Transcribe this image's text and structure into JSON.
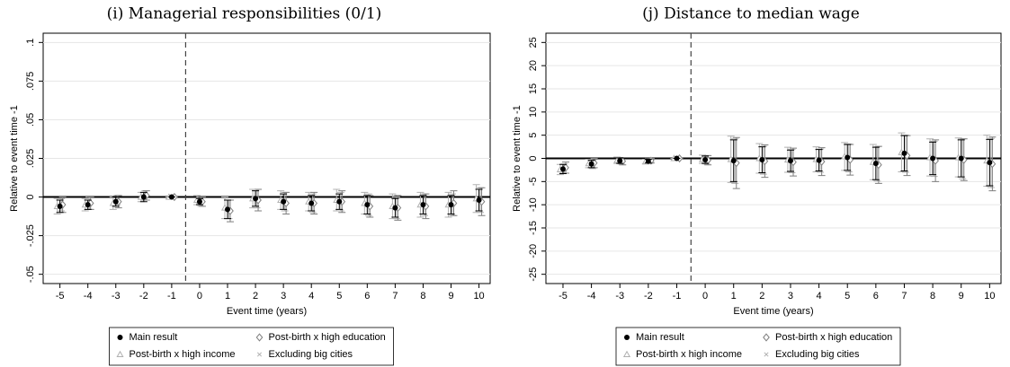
{
  "chart_data": [
    {
      "type": "errorbar",
      "title": "(i) Managerial responsibilities (0/1)",
      "x_label": "Event time (years)",
      "y_label": "Relative to event time -1",
      "x": [
        -5,
        -4,
        -3,
        -2,
        -1,
        0,
        1,
        2,
        3,
        4,
        5,
        6,
        7,
        8,
        9,
        10
      ],
      "xlim": [
        -5.6,
        10.4
      ],
      "xticks": [
        -5,
        -4,
        -3,
        -2,
        -1,
        0,
        1,
        2,
        3,
        4,
        5,
        6,
        7,
        8,
        9,
        10
      ],
      "ylim": [
        -0.056,
        0.106
      ],
      "yticks": [
        {
          "value": -0.05,
          "label": "-.05"
        },
        {
          "value": -0.025,
          "label": "-.025"
        },
        0,
        {
          "value": 0.025,
          "label": ".025"
        },
        {
          "value": 0.05,
          "label": ".05"
        },
        {
          "value": 0.075,
          "label": ".075"
        },
        {
          "value": 0.1,
          "label": ".1"
        }
      ],
      "grid": true,
      "hline": 0,
      "vline": -0.5,
      "series": [
        {
          "name": "Main result",
          "color": "#000000",
          "marker": "circle",
          "values": [
            -0.006,
            -0.005,
            -0.003,
            0.0,
            0,
            -0.003,
            -0.008,
            -0.001,
            -0.003,
            -0.004,
            -0.003,
            -0.005,
            -0.007,
            -0.005,
            -0.005,
            -0.002
          ],
          "errors": [
            0.004,
            0.003,
            0.003,
            0.003,
            0,
            0.002,
            0.006,
            0.005,
            0.005,
            0.005,
            0.005,
            0.006,
            0.006,
            0.006,
            0.006,
            0.007
          ]
        },
        {
          "name": "Post-birth x high education",
          "color": "#7f7f7f",
          "marker": "diamond",
          "values": [
            -0.005,
            -0.004,
            -0.003,
            0.001,
            0,
            -0.003,
            -0.009,
            -0.002,
            -0.004,
            -0.004,
            -0.003,
            -0.006,
            -0.007,
            -0.006,
            -0.004,
            -0.003
          ],
          "errors": [
            0.005,
            0.004,
            0.004,
            0.003,
            0,
            0.003,
            0.007,
            0.007,
            0.007,
            0.007,
            0.007,
            0.007,
            0.008,
            0.008,
            0.008,
            0.009
          ]
        },
        {
          "name": "Post-birth x high income",
          "color": "#b0b0b0",
          "marker": "triangle",
          "values": [
            -0.006,
            -0.005,
            -0.004,
            0.0,
            0,
            -0.002,
            -0.007,
            -0.001,
            -0.002,
            -0.003,
            -0.002,
            -0.004,
            -0.006,
            -0.005,
            -0.005,
            -0.001
          ],
          "errors": [
            0.005,
            0.004,
            0.004,
            0.003,
            0,
            0.003,
            0.007,
            0.006,
            0.006,
            0.006,
            0.007,
            0.007,
            0.008,
            0.008,
            0.008,
            0.009
          ]
        },
        {
          "name": "Excluding big cities",
          "color": "#b0b0b0",
          "marker": "x",
          "values": [
            -0.005,
            -0.004,
            -0.002,
            0.001,
            0,
            -0.003,
            -0.008,
            -0.001,
            -0.003,
            -0.004,
            -0.003,
            -0.005,
            -0.007,
            -0.005,
            -0.005,
            -0.002
          ],
          "errors": [
            0.004,
            0.004,
            0.003,
            0.003,
            0,
            0.003,
            0.006,
            0.006,
            0.006,
            0.006,
            0.006,
            0.007,
            0.007,
            0.007,
            0.007,
            0.008
          ]
        }
      ]
    },
    {
      "type": "errorbar",
      "title": "(j) Distance to median wage",
      "x_label": "Event time (years)",
      "y_label": "Relative to event time -1",
      "x": [
        -5,
        -4,
        -3,
        -2,
        -1,
        0,
        1,
        2,
        3,
        4,
        5,
        6,
        7,
        8,
        9,
        10
      ],
      "xlim": [
        -5.6,
        10.4
      ],
      "xticks": [
        -5,
        -4,
        -3,
        -2,
        -1,
        0,
        1,
        2,
        3,
        4,
        5,
        6,
        7,
        8,
        9,
        10
      ],
      "ylim": [
        -27,
        27
      ],
      "yticks": [
        -25,
        -20,
        -15,
        -10,
        -5,
        0,
        5,
        10,
        15,
        20,
        25
      ],
      "grid": true,
      "hline": 0,
      "vline": -0.5,
      "series": [
        {
          "name": "Main result",
          "color": "#000000",
          "marker": "circle",
          "values": [
            -2.3,
            -1.2,
            -0.5,
            -0.6,
            0,
            -0.3,
            -0.5,
            -0.3,
            -0.5,
            -0.4,
            0.2,
            -1.1,
            1.1,
            0.0,
            0.0,
            -0.9
          ],
          "errors": [
            1.0,
            0.8,
            0.6,
            0.4,
            0,
            0.8,
            4.5,
            2.8,
            2.3,
            2.3,
            2.8,
            3.5,
            3.8,
            3.5,
            4.0,
            5.0
          ]
        },
        {
          "name": "Post-birth x high education",
          "color": "#7f7f7f",
          "marker": "diamond",
          "values": [
            -2.0,
            -1.0,
            -0.6,
            -0.5,
            0,
            -0.4,
            -1.0,
            -0.6,
            -0.8,
            -0.7,
            -0.3,
            -1.4,
            0.6,
            -0.5,
            -0.3,
            -1.2
          ],
          "errors": [
            1.2,
            1.0,
            0.8,
            0.5,
            0,
            1.0,
            5.5,
            3.5,
            3.0,
            3.0,
            3.3,
            4.0,
            4.3,
            4.5,
            4.5,
            5.8
          ]
        },
        {
          "name": "Post-birth x high income",
          "color": "#b0b0b0",
          "marker": "triangle",
          "values": [
            -2.4,
            -1.1,
            -0.4,
            -0.7,
            0,
            -0.2,
            -0.2,
            0.0,
            -0.3,
            -0.2,
            0.4,
            -0.8,
            1.3,
            0.2,
            0.2,
            -0.5
          ],
          "errors": [
            1.1,
            0.9,
            0.7,
            0.5,
            0,
            0.9,
            5.0,
            3.2,
            2.7,
            2.7,
            3.0,
            3.8,
            4.2,
            4.0,
            4.2,
            5.5
          ]
        },
        {
          "name": "Excluding big cities",
          "color": "#b0b0b0",
          "marker": "x",
          "values": [
            -2.2,
            -1.3,
            -0.5,
            -0.6,
            0,
            -0.3,
            -0.6,
            -0.4,
            -0.6,
            -0.5,
            0.1,
            -1.2,
            1.0,
            -0.1,
            -0.1,
            -1.0
          ],
          "errors": [
            1.0,
            0.9,
            0.7,
            0.5,
            0,
            0.9,
            4.8,
            3.0,
            2.5,
            2.5,
            3.0,
            3.7,
            4.0,
            3.8,
            4.3,
            5.3
          ]
        }
      ]
    }
  ]
}
